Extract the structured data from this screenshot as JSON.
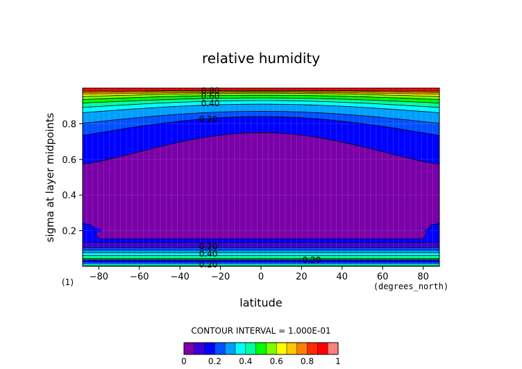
{
  "chart_data": {
    "type": "contour",
    "title": "relative humidity",
    "xlabel": "latitude",
    "xunit": "(degrees_north)",
    "ylabel": "sigma at layer midpoints",
    "panel_label": "(1)",
    "xlim": [
      -88,
      88
    ],
    "ylim": [
      0.0,
      1.0
    ],
    "x_ticks": [
      "−80",
      "−60",
      "−40",
      "−20",
      "0",
      "20",
      "40",
      "60",
      "80"
    ],
    "y_ticks": [
      "0.2",
      "0.4",
      "0.6",
      "0.8"
    ],
    "contour_interval_text": "CONTOUR INTERVAL = 1.000E-01",
    "colorbar_ticks": [
      "0",
      "0.2",
      "0.4",
      "0.6",
      "0.8",
      "1"
    ],
    "colorbar_colors": [
      "#7a00a8",
      "#3c00d6",
      "#0000ff",
      "#0050ff",
      "#00a0ff",
      "#00ffff",
      "#00ffa0",
      "#00ff00",
      "#7aff00",
      "#ffff00",
      "#ffc800",
      "#ff8000",
      "#ff2a00",
      "#ff0000",
      "#ff7f7f"
    ],
    "contour_labels": [
      {
        "text": "0.80",
        "lat": -25,
        "sigma": 0.985
      },
      {
        "text": "0.60",
        "lat": -25,
        "sigma": 0.955
      },
      {
        "text": "0.40",
        "lat": -25,
        "sigma": 0.915
      },
      {
        "text": "0.20",
        "lat": -26,
        "sigma": 0.825
      },
      {
        "text": "0.20",
        "lat": -26,
        "sigma": 0.11
      },
      {
        "text": "0.40",
        "lat": -26,
        "sigma": 0.07
      },
      {
        "text": "0.20",
        "lat": 25,
        "sigma": 0.035
      },
      {
        "text": "0.20",
        "lat": -26,
        "sigma": 0.01
      }
    ]
  }
}
